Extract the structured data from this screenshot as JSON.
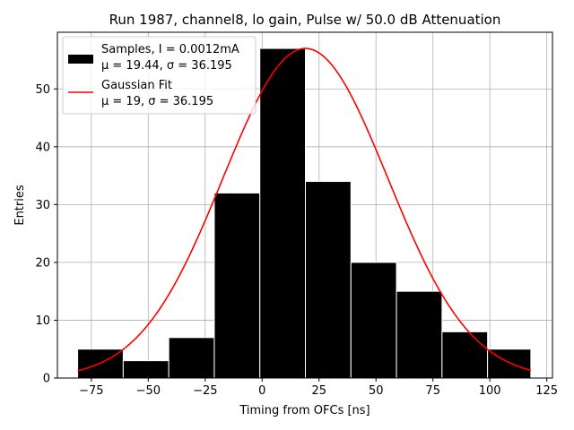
{
  "chart_data": {
    "type": "bar",
    "title": "Run 1987, channel8, lo gain, Pulse w/ 50.0 dB Attenuation",
    "xlabel": "Timing from OFCs [ns]",
    "ylabel": "Entries",
    "xlim": [
      -89.9,
      127.5
    ],
    "ylim": [
      0,
      59.8
    ],
    "grid": true,
    "x_ticks": [
      -75,
      -50,
      -25,
      0,
      25,
      50,
      75,
      100,
      125
    ],
    "x_tick_labels": [
      "−75",
      "−50",
      "−25",
      "0",
      "25",
      "50",
      "75",
      "100",
      "125"
    ],
    "y_ticks": [
      0,
      10,
      20,
      30,
      40,
      50
    ],
    "y_tick_labels": [
      "0",
      "10",
      "20",
      "30",
      "40",
      "50"
    ],
    "bins": [
      {
        "x0": -81,
        "x1": -61,
        "count": 5
      },
      {
        "x0": -61,
        "x1": -41,
        "count": 3
      },
      {
        "x0": -41,
        "x1": -21,
        "count": 7
      },
      {
        "x0": -21,
        "x1": -1,
        "count": 32
      },
      {
        "x0": -1,
        "x1": 19,
        "count": 57
      },
      {
        "x0": 19,
        "x1": 39,
        "count": 34
      },
      {
        "x0": 39,
        "x1": 59,
        "count": 20
      },
      {
        "x0": 59,
        "x1": 79,
        "count": 15
      },
      {
        "x0": 79,
        "x1": 99,
        "count": 8
      },
      {
        "x0": 99,
        "x1": 118,
        "count": 5
      }
    ],
    "fit": {
      "mu": 19,
      "sigma": 36.195,
      "amplitude": 57,
      "x_range": [
        -81,
        118
      ]
    },
    "series": [
      {
        "name": "Samples, I = 0.0012mA",
        "stats": "μ = 19.44, σ = 36.195",
        "color": "#000000"
      },
      {
        "name": "Gaussian Fit",
        "stats": "μ = 19, σ = 36.195",
        "color": "#ff0000"
      }
    ],
    "legend_position": "top-left"
  }
}
